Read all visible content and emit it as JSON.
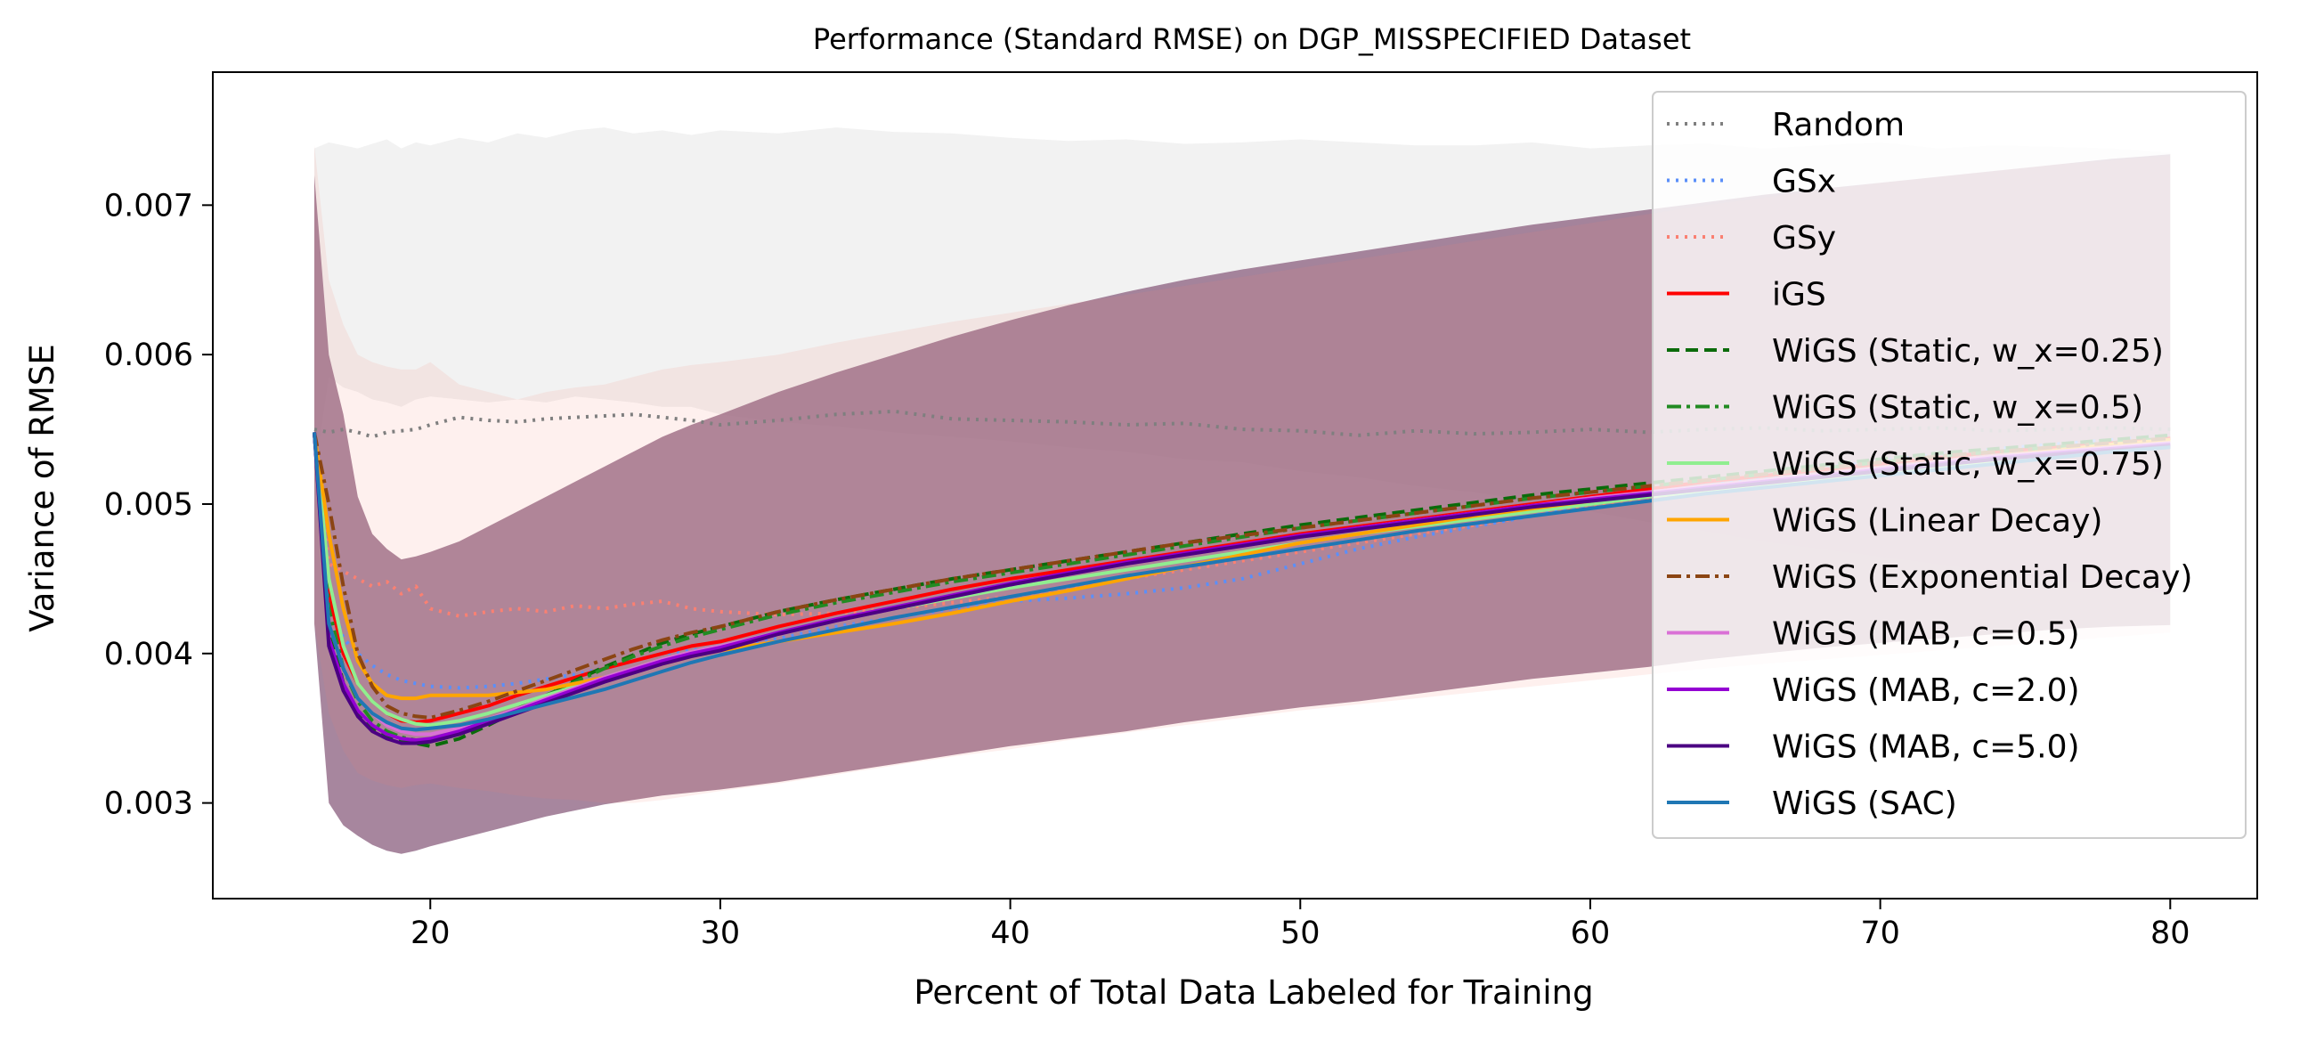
{
  "chart_data": {
    "type": "line",
    "title": "Performance (Standard RMSE) on DGP_MISSPECIFIED Dataset",
    "xlabel": "Percent of Total Data Labeled for Training",
    "ylabel": "Variance of RMSE",
    "xlim": [
      12.5,
      83.0
    ],
    "ylim": [
      0.00236,
      0.00789
    ],
    "xticks": [
      20,
      30,
      40,
      50,
      60,
      70,
      80
    ],
    "xtick_labels": [
      "20",
      "30",
      "40",
      "50",
      "60",
      "70",
      "80"
    ],
    "yticks": [
      0.003,
      0.004,
      0.005,
      0.006,
      0.007
    ],
    "ytick_labels": [
      "0.003",
      "0.004",
      "0.005",
      "0.006",
      "0.007"
    ],
    "grid": false,
    "legend_position": "top-right",
    "x": [
      16,
      16.5,
      17,
      17.5,
      18,
      18.5,
      19,
      19.5,
      20,
      21,
      22,
      23,
      24,
      25,
      26,
      27,
      28,
      29,
      30,
      32,
      34,
      36,
      38,
      40,
      42,
      44,
      46,
      48,
      50,
      52,
      54,
      56,
      58,
      60,
      62,
      64,
      66,
      68,
      70,
      72,
      74,
      76,
      78,
      80
    ],
    "bands": [
      {
        "name": "Random",
        "color": "#7f7f7f",
        "opacity": 0.1,
        "upper": [
          0.00738,
          0.00742,
          0.0074,
          0.00738,
          0.00741,
          0.00744,
          0.00738,
          0.00742,
          0.0074,
          0.00745,
          0.00742,
          0.00748,
          0.00745,
          0.0075,
          0.00752,
          0.00748,
          0.0075,
          0.00747,
          0.0075,
          0.00748,
          0.00752,
          0.00749,
          0.00748,
          0.00745,
          0.00743,
          0.00744,
          0.00741,
          0.00742,
          0.00744,
          0.00742,
          0.0074,
          0.0074,
          0.00742,
          0.00738,
          0.0074,
          0.00741,
          0.00738,
          0.0074,
          0.00742,
          0.00738,
          0.0074,
          0.00739,
          0.00738,
          0.00735
        ],
        "lower": [
          0.0052,
          0.00585,
          0.00578,
          0.00575,
          0.0057,
          0.00568,
          0.00565,
          0.0057,
          0.00572,
          0.0057,
          0.00568,
          0.0057,
          0.00568,
          0.00572,
          0.0057,
          0.00568,
          0.00565,
          0.00565,
          0.0056,
          0.00555,
          0.00552,
          0.00548,
          0.00545,
          0.00542,
          0.00538,
          0.00535,
          0.0053,
          0.00528,
          0.00522,
          0.00518,
          0.00512,
          0.00508,
          0.00502,
          0.00495,
          0.00488,
          0.00482,
          0.00475,
          0.0047,
          0.00465,
          0.0046,
          0.00455,
          0.0045,
          0.00445,
          0.0044
        ]
      },
      {
        "name": "WiGS band",
        "color": "#8a5e7e",
        "opacity": 0.75,
        "upper": [
          0.0072,
          0.006,
          0.0056,
          0.00505,
          0.0048,
          0.0047,
          0.00463,
          0.00465,
          0.00468,
          0.00475,
          0.00485,
          0.00495,
          0.00505,
          0.00515,
          0.00525,
          0.00535,
          0.00545,
          0.00553,
          0.0056,
          0.00575,
          0.00588,
          0.006,
          0.00612,
          0.00623,
          0.00633,
          0.00642,
          0.0065,
          0.00657,
          0.00663,
          0.00669,
          0.00675,
          0.00681,
          0.00687,
          0.00692,
          0.00697,
          0.00702,
          0.00707,
          0.00711,
          0.00715,
          0.00719,
          0.00723,
          0.00727,
          0.00731,
          0.00734
        ],
        "lower": [
          0.0042,
          0.003,
          0.00285,
          0.00278,
          0.00272,
          0.00268,
          0.00266,
          0.00268,
          0.00271,
          0.00276,
          0.00281,
          0.00286,
          0.00291,
          0.00295,
          0.00299,
          0.00302,
          0.00305,
          0.00307,
          0.00309,
          0.00314,
          0.0032,
          0.00326,
          0.00332,
          0.00338,
          0.00343,
          0.00348,
          0.00354,
          0.00359,
          0.00364,
          0.00368,
          0.00373,
          0.00378,
          0.00383,
          0.00387,
          0.00391,
          0.00396,
          0.004,
          0.00404,
          0.00407,
          0.0041,
          0.00413,
          0.00416,
          0.00418,
          0.00419
        ]
      },
      {
        "name": "GSy band",
        "color": "#fa8072",
        "opacity": 0.12,
        "upper": [
          0.0074,
          0.0065,
          0.0062,
          0.006,
          0.00595,
          0.00592,
          0.0059,
          0.0059,
          0.00595,
          0.0058,
          0.00575,
          0.0057,
          0.00575,
          0.00578,
          0.0058,
          0.00585,
          0.0059,
          0.00593,
          0.00595,
          0.006,
          0.00608,
          0.00615,
          0.00622,
          0.00628,
          0.00634,
          0.0064,
          0.00646,
          0.00652,
          0.00658,
          0.00664,
          0.0067,
          0.00676,
          0.00682,
          0.00688,
          0.00694,
          0.007,
          0.00705,
          0.0071,
          0.00715,
          0.00719,
          0.00723,
          0.00727,
          0.0073,
          0.00733
        ],
        "lower": [
          0.0042,
          0.0036,
          0.00335,
          0.0032,
          0.00315,
          0.00312,
          0.0031,
          0.00312,
          0.00313,
          0.0031,
          0.00308,
          0.00305,
          0.00303,
          0.00302,
          0.003,
          0.003,
          0.00302,
          0.00305,
          0.00308,
          0.00313,
          0.00319,
          0.00325,
          0.00331,
          0.00336,
          0.00342,
          0.00347,
          0.00352,
          0.00357,
          0.00362,
          0.00366,
          0.0037,
          0.00374,
          0.00378,
          0.00382,
          0.00386,
          0.0039,
          0.00393,
          0.00396,
          0.00399,
          0.00402,
          0.00405,
          0.00408,
          0.00411,
          0.00414
        ]
      }
    ],
    "series": [
      {
        "name": "Random",
        "color": "#7f7f7f",
        "style": "dotted",
        "values": [
          0.0055,
          0.00548,
          0.0055,
          0.00548,
          0.00545,
          0.00548,
          0.00549,
          0.0055,
          0.00553,
          0.00558,
          0.00556,
          0.00555,
          0.00557,
          0.00558,
          0.00559,
          0.0056,
          0.00558,
          0.00556,
          0.00553,
          0.00556,
          0.0056,
          0.00562,
          0.00557,
          0.00556,
          0.00555,
          0.00553,
          0.00554,
          0.0055,
          0.00549,
          0.00546,
          0.00549,
          0.00547,
          0.00548,
          0.0055,
          0.00548,
          0.0055,
          0.00551,
          0.00549,
          0.0055,
          0.00551,
          0.00549,
          0.0055,
          0.00551,
          0.0055
        ]
      },
      {
        "name": "GSx",
        "color": "#5b8ff9",
        "style": "dotted",
        "values": [
          0.00548,
          0.0044,
          0.0041,
          0.004,
          0.00392,
          0.00386,
          0.00382,
          0.0038,
          0.00378,
          0.00377,
          0.00378,
          0.0038,
          0.00383,
          0.00386,
          0.0039,
          0.00395,
          0.004,
          0.00402,
          0.00404,
          0.0041,
          0.00418,
          0.00424,
          0.0043,
          0.00435,
          0.00437,
          0.0044,
          0.00444,
          0.0045,
          0.0046,
          0.0047,
          0.00478,
          0.00485,
          0.00492,
          0.005,
          0.00506,
          0.00512,
          0.00518,
          0.00524,
          0.00529,
          0.00533,
          0.00537,
          0.0054,
          0.00543,
          0.00546
        ]
      },
      {
        "name": "GSy",
        "color": "#fa8072",
        "style": "dotted",
        "values": [
          0.00548,
          0.0046,
          0.00455,
          0.0045,
          0.00445,
          0.00448,
          0.0044,
          0.00445,
          0.0043,
          0.00425,
          0.00428,
          0.0043,
          0.00428,
          0.00432,
          0.0043,
          0.00433,
          0.00435,
          0.0043,
          0.00428,
          0.00426,
          0.00427,
          0.0043,
          0.00434,
          0.00438,
          0.00444,
          0.0045,
          0.00456,
          0.00462,
          0.00468,
          0.00474,
          0.0048,
          0.00486,
          0.00492,
          0.00498,
          0.00504,
          0.0051,
          0.00515,
          0.0052,
          0.00525,
          0.0053,
          0.00534,
          0.00538,
          0.00541,
          0.00544
        ]
      },
      {
        "name": "iGS",
        "color": "#ff0000",
        "style": "solid",
        "values": [
          0.00548,
          0.0044,
          0.004,
          0.0038,
          0.00368,
          0.0036,
          0.00355,
          0.00354,
          0.00355,
          0.0036,
          0.00365,
          0.00372,
          0.00378,
          0.00384,
          0.0039,
          0.00395,
          0.004,
          0.00405,
          0.00408,
          0.00418,
          0.00427,
          0.00435,
          0.00443,
          0.0045,
          0.00456,
          0.00462,
          0.00468,
          0.00474,
          0.0048,
          0.00485,
          0.0049,
          0.00495,
          0.005,
          0.00505,
          0.0051,
          0.00515,
          0.00519,
          0.00523,
          0.00527,
          0.00531,
          0.00535,
          0.00538,
          0.00541,
          0.00544
        ]
      },
      {
        "name": "WiGS (Static, w_x=0.25)",
        "color": "#0a6b0a",
        "style": "dashed",
        "values": [
          0.00548,
          0.0042,
          0.0038,
          0.0036,
          0.0035,
          0.00345,
          0.00342,
          0.0034,
          0.00338,
          0.00343,
          0.00352,
          0.00362,
          0.00372,
          0.00382,
          0.00391,
          0.00399,
          0.00407,
          0.00413,
          0.00418,
          0.00428,
          0.00436,
          0.00443,
          0.0045,
          0.00456,
          0.00462,
          0.00468,
          0.00474,
          0.0048,
          0.00486,
          0.00491,
          0.00496,
          0.00501,
          0.00506,
          0.0051,
          0.00514,
          0.00518,
          0.00522,
          0.00526,
          0.0053,
          0.00534,
          0.00537,
          0.0054,
          0.00543,
          0.00546
        ]
      },
      {
        "name": "WiGS (Static, w_x=0.5)",
        "color": "#228b22",
        "style": "dashdot",
        "values": [
          0.00548,
          0.0043,
          0.0039,
          0.00368,
          0.00355,
          0.00348,
          0.00344,
          0.00342,
          0.00341,
          0.00346,
          0.00354,
          0.00363,
          0.00372,
          0.00381,
          0.0039,
          0.00398,
          0.00405,
          0.00411,
          0.00416,
          0.00426,
          0.00434,
          0.00441,
          0.00448,
          0.00454,
          0.0046,
          0.00466,
          0.00472,
          0.00478,
          0.00484,
          0.00489,
          0.00494,
          0.00499,
          0.00504,
          0.00508,
          0.00512,
          0.00516,
          0.0052,
          0.00524,
          0.00528,
          0.00532,
          0.00535,
          0.00538,
          0.00541,
          0.00544
        ]
      },
      {
        "name": "WiGS (Static, w_x=0.75)",
        "color": "#90ee90",
        "style": "solid",
        "values": [
          0.00548,
          0.0045,
          0.00405,
          0.0038,
          0.00368,
          0.0036,
          0.00356,
          0.00353,
          0.00352,
          0.00355,
          0.0036,
          0.00366,
          0.00372,
          0.00378,
          0.00384,
          0.0039,
          0.00396,
          0.00401,
          0.00405,
          0.00414,
          0.00422,
          0.0043,
          0.00437,
          0.00444,
          0.0045,
          0.00456,
          0.00462,
          0.00468,
          0.00474,
          0.0048,
          0.00485,
          0.0049,
          0.00495,
          0.005,
          0.00505,
          0.00509,
          0.00513,
          0.00517,
          0.00521,
          0.00525,
          0.00529,
          0.00533,
          0.00537,
          0.0054
        ]
      },
      {
        "name": "WiGS (Linear Decay)",
        "color": "#ffa500",
        "style": "solid",
        "values": [
          0.00548,
          0.0048,
          0.0043,
          0.00395,
          0.0038,
          0.00372,
          0.0037,
          0.0037,
          0.00372,
          0.00372,
          0.00372,
          0.00374,
          0.00376,
          0.0038,
          0.00384,
          0.00388,
          0.00393,
          0.00398,
          0.00402,
          0.00408,
          0.00414,
          0.0042,
          0.00427,
          0.00435,
          0.00442,
          0.0045,
          0.00458,
          0.00466,
          0.00474,
          0.0048,
          0.00486,
          0.00492,
          0.00497,
          0.00502,
          0.00507,
          0.00512,
          0.00516,
          0.0052,
          0.00524,
          0.00528,
          0.00532,
          0.00536,
          0.0054,
          0.00543
        ]
      },
      {
        "name": "WiGS (Exponential Decay)",
        "color": "#8b4513",
        "style": "dashdot",
        "values": [
          0.00548,
          0.005,
          0.00445,
          0.004,
          0.00378,
          0.00365,
          0.0036,
          0.00358,
          0.00357,
          0.00362,
          0.00368,
          0.00375,
          0.00382,
          0.00389,
          0.00396,
          0.00403,
          0.00409,
          0.00414,
          0.00418,
          0.00428,
          0.00436,
          0.00443,
          0.0045,
          0.00456,
          0.00462,
          0.00468,
          0.00474,
          0.00479,
          0.00484,
          0.00489,
          0.00494,
          0.00499,
          0.00504,
          0.00508,
          0.00512,
          0.00516,
          0.0052,
          0.00524,
          0.00528,
          0.00532,
          0.00535,
          0.00538,
          0.00541,
          0.00544
        ]
      },
      {
        "name": "WiGS (MAB, c=0.5)",
        "color": "#da70d6",
        "style": "solid",
        "values": [
          0.00548,
          0.0042,
          0.0039,
          0.0037,
          0.0036,
          0.00352,
          0.00348,
          0.00346,
          0.00346,
          0.0035,
          0.00356,
          0.00363,
          0.0037,
          0.00377,
          0.00384,
          0.0039,
          0.00396,
          0.00401,
          0.00405,
          0.00414,
          0.00422,
          0.0043,
          0.00438,
          0.00446,
          0.00453,
          0.0046,
          0.00466,
          0.00472,
          0.00478,
          0.00484,
          0.00489,
          0.00494,
          0.00499,
          0.00504,
          0.00508,
          0.00512,
          0.00516,
          0.0052,
          0.00524,
          0.00528,
          0.00532,
          0.00535,
          0.00538,
          0.00541
        ]
      },
      {
        "name": "WiGS (MAB, c=2.0)",
        "color": "#9400d3",
        "style": "solid",
        "values": [
          0.00548,
          0.0041,
          0.0038,
          0.00362,
          0.00352,
          0.00346,
          0.00343,
          0.00342,
          0.00343,
          0.00348,
          0.00355,
          0.00362,
          0.00369,
          0.00376,
          0.00383,
          0.00389,
          0.00395,
          0.004,
          0.00404,
          0.00414,
          0.00423,
          0.00431,
          0.00439,
          0.00447,
          0.00454,
          0.00461,
          0.00467,
          0.00473,
          0.00479,
          0.00484,
          0.00489,
          0.00494,
          0.00499,
          0.00503,
          0.00507,
          0.00511,
          0.00515,
          0.00519,
          0.00523,
          0.00527,
          0.00531,
          0.00534,
          0.00537,
          0.0054
        ]
      },
      {
        "name": "WiGS (MAB, c=5.0)",
        "color": "#4b0082",
        "style": "solid",
        "values": [
          0.00548,
          0.00405,
          0.00375,
          0.00358,
          0.00348,
          0.00343,
          0.0034,
          0.0034,
          0.00341,
          0.00346,
          0.00353,
          0.0036,
          0.00367,
          0.00374,
          0.00381,
          0.00387,
          0.00393,
          0.00398,
          0.00402,
          0.00413,
          0.00422,
          0.0043,
          0.00438,
          0.00446,
          0.00453,
          0.0046,
          0.00466,
          0.00472,
          0.00478,
          0.00483,
          0.00488,
          0.00493,
          0.00498,
          0.00502,
          0.00506,
          0.0051,
          0.00514,
          0.00518,
          0.00522,
          0.00526,
          0.0053,
          0.00533,
          0.00536,
          0.00539
        ]
      },
      {
        "name": "WiGS (SAC)",
        "color": "#1f77b4",
        "style": "solid",
        "values": [
          0.00548,
          0.0042,
          0.0039,
          0.0037,
          0.0036,
          0.00354,
          0.0035,
          0.00349,
          0.0035,
          0.00352,
          0.00356,
          0.00361,
          0.00366,
          0.00371,
          0.00376,
          0.00382,
          0.00388,
          0.00394,
          0.00399,
          0.00408,
          0.00416,
          0.00424,
          0.00431,
          0.00438,
          0.00445,
          0.00452,
          0.00458,
          0.00464,
          0.0047,
          0.00476,
          0.00482,
          0.00487,
          0.00492,
          0.00497,
          0.00502,
          0.00507,
          0.00511,
          0.00515,
          0.00519,
          0.00523,
          0.00527,
          0.00531,
          0.00535,
          0.00538
        ]
      }
    ]
  }
}
